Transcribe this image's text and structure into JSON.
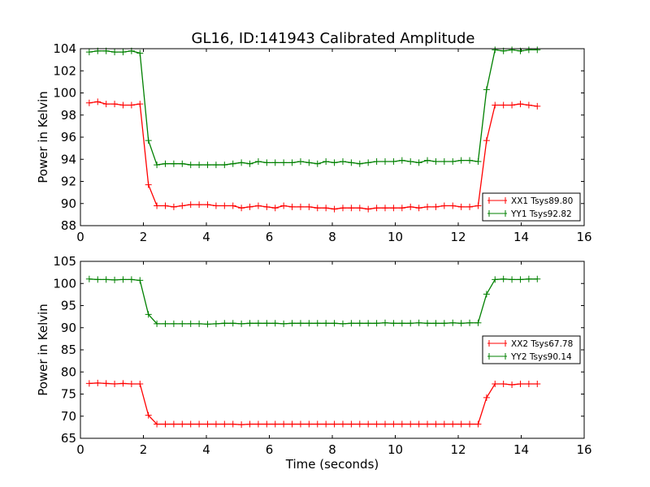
{
  "title": "GL16, ID:141943 Calibrated Amplitude",
  "colors": {
    "xx": "#ff0000",
    "yy": "#008000"
  },
  "chart_data": [
    {
      "type": "line",
      "title": "GL16, ID:141943 Calibrated Amplitude",
      "xlabel": "",
      "ylabel": "Power in Kelvin",
      "xlim": [
        0,
        16
      ],
      "ylim": [
        88,
        104
      ],
      "xticks": [
        "0",
        "2",
        "4",
        "6",
        "8",
        "10",
        "12",
        "14",
        "16"
      ],
      "yticks": [
        "88",
        "90",
        "92",
        "94",
        "96",
        "98",
        "100",
        "102",
        "104"
      ],
      "legend_position": "lower-right",
      "x_start": 0.28,
      "x_step": 0.2685,
      "series": [
        {
          "name": "XX1 Tsys89.80",
          "color": "#ff0000",
          "values": [
            99.1,
            99.2,
            99.0,
            99.0,
            98.9,
            98.9,
            99.0,
            91.7,
            89.8,
            89.8,
            89.7,
            89.8,
            89.9,
            89.9,
            89.9,
            89.8,
            89.8,
            89.8,
            89.6,
            89.7,
            89.8,
            89.7,
            89.6,
            89.8,
            89.7,
            89.7,
            89.7,
            89.6,
            89.6,
            89.5,
            89.6,
            89.6,
            89.6,
            89.5,
            89.6,
            89.6,
            89.6,
            89.6,
            89.7,
            89.6,
            89.7,
            89.7,
            89.8,
            89.8,
            89.7,
            89.7,
            89.8,
            95.7,
            98.9,
            98.9,
            98.9,
            99.0,
            98.9,
            98.8
          ]
        },
        {
          "name": "YY1 Tsys92.82",
          "color": "#008000",
          "values": [
            103.7,
            103.8,
            103.8,
            103.7,
            103.7,
            103.8,
            103.6,
            95.7,
            93.5,
            93.6,
            93.6,
            93.6,
            93.5,
            93.5,
            93.5,
            93.5,
            93.5,
            93.6,
            93.7,
            93.6,
            93.8,
            93.7,
            93.7,
            93.7,
            93.7,
            93.8,
            93.7,
            93.6,
            93.8,
            93.7,
            93.8,
            93.7,
            93.6,
            93.7,
            93.8,
            93.8,
            93.8,
            93.9,
            93.8,
            93.7,
            93.9,
            93.8,
            93.8,
            93.8,
            93.9,
            93.9,
            93.8,
            100.3,
            103.9,
            103.8,
            103.9,
            103.8,
            103.9,
            103.9
          ]
        }
      ]
    },
    {
      "type": "line",
      "xlabel": "Time (seconds)",
      "ylabel": "Power in Kelvin",
      "xlim": [
        0,
        16
      ],
      "ylim": [
        65,
        105
      ],
      "xticks": [
        "0",
        "2",
        "4",
        "6",
        "8",
        "10",
        "12",
        "14",
        "16"
      ],
      "yticks": [
        "65",
        "70",
        "75",
        "80",
        "85",
        "90",
        "95",
        "100",
        "105"
      ],
      "legend_position": "center-right",
      "x_start": 0.28,
      "x_step": 0.2685,
      "series": [
        {
          "name": "XX2 Tsys67.78",
          "color": "#ff0000",
          "values": [
            77.4,
            77.5,
            77.4,
            77.3,
            77.4,
            77.3,
            77.3,
            70.2,
            68.2,
            68.2,
            68.2,
            68.2,
            68.2,
            68.2,
            68.2,
            68.2,
            68.2,
            68.2,
            68.1,
            68.2,
            68.2,
            68.2,
            68.2,
            68.2,
            68.2,
            68.2,
            68.2,
            68.2,
            68.2,
            68.2,
            68.2,
            68.2,
            68.2,
            68.2,
            68.2,
            68.2,
            68.2,
            68.2,
            68.2,
            68.2,
            68.2,
            68.2,
            68.2,
            68.2,
            68.2,
            68.2,
            68.2,
            74.2,
            77.3,
            77.3,
            77.1,
            77.3,
            77.3,
            77.3
          ]
        },
        {
          "name": "YY2 Tsys90.14",
          "color": "#008000",
          "values": [
            101.0,
            100.9,
            100.9,
            100.8,
            100.9,
            100.9,
            100.7,
            93.0,
            90.9,
            90.9,
            90.9,
            90.9,
            90.9,
            90.9,
            90.8,
            90.9,
            91.0,
            91.0,
            90.9,
            91.0,
            91.0,
            91.0,
            91.0,
            90.9,
            91.0,
            91.0,
            91.0,
            91.0,
            91.0,
            91.0,
            90.9,
            91.0,
            91.0,
            91.0,
            91.0,
            91.1,
            91.0,
            91.0,
            91.0,
            91.1,
            91.0,
            91.0,
            91.0,
            91.1,
            91.0,
            91.1,
            91.1,
            97.6,
            100.9,
            101.0,
            100.9,
            100.9,
            101.0,
            101.0
          ]
        }
      ]
    }
  ]
}
